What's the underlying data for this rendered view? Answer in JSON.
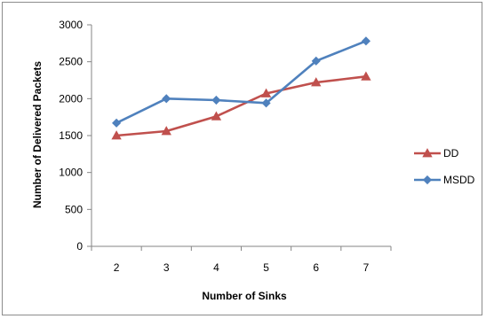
{
  "chart_data": {
    "type": "line",
    "title": "",
    "xlabel": "Number of Sinks",
    "ylabel": "Number of Delivered Packets",
    "categories": [
      "2",
      "3",
      "4",
      "5",
      "6",
      "7"
    ],
    "x": [
      2,
      3,
      4,
      5,
      6,
      7
    ],
    "ylim": [
      0,
      3000
    ],
    "yticks": [
      0,
      500,
      1000,
      1500,
      2000,
      2500,
      3000
    ],
    "grid": false,
    "legend_position": "right",
    "series": [
      {
        "name": "DD",
        "marker": "triangle",
        "color": "#c0504d",
        "values": [
          1500,
          1560,
          1760,
          2070,
          2220,
          2300
        ]
      },
      {
        "name": "MSDD",
        "marker": "diamond",
        "color": "#4f81bd",
        "values": [
          1670,
          2000,
          1980,
          1940,
          2510,
          2780
        ]
      }
    ]
  }
}
